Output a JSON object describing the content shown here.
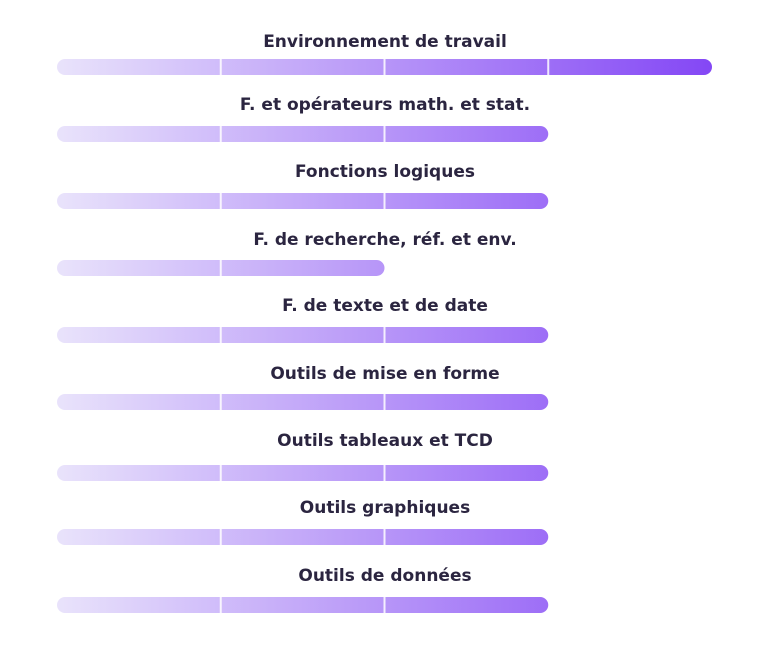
{
  "chart_data": {
    "type": "bar",
    "orientation": "horizontal",
    "categories": [
      "Environnement de travail",
      "F. et opérateurs math. et stat.",
      "Fonctions logiques",
      "F. de recherche, réf. et env.",
      "F. de texte et de date",
      "Outils de mise en forme",
      "Outils tableaux et TCD",
      "Outils graphiques",
      "Outils de données"
    ],
    "values": [
      4,
      3,
      3,
      2,
      3,
      3,
      3,
      3,
      3
    ],
    "xlim": [
      0,
      4
    ],
    "segments": 4,
    "grid": false,
    "legend": "none",
    "colors": {
      "start": "#e9e3fb",
      "end": "#8447f5",
      "track": "#ffffff",
      "separator": "#ffffff",
      "label": "#2b2540"
    }
  }
}
